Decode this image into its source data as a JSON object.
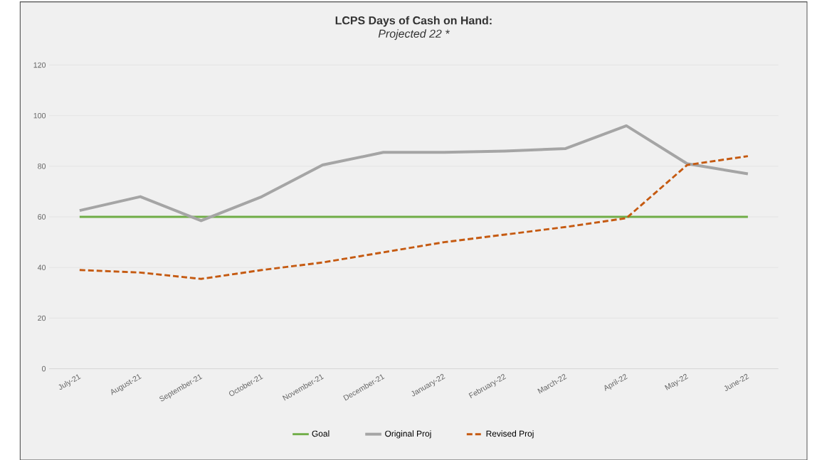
{
  "chart_data": {
    "type": "line",
    "title": "LCPS Days of Cash on Hand:",
    "subtitle": "Projected 22 *",
    "categories": [
      "July-21",
      "August-21",
      "September-21",
      "October-21",
      "November-21",
      "December-21",
      "January-22",
      "February-22",
      "March-22",
      "April-22",
      "May-22",
      "June-22"
    ],
    "series": [
      {
        "name": "Goal",
        "color": "#70ad47",
        "line_style": "solid",
        "values": [
          60,
          60,
          60,
          60,
          60,
          60,
          60,
          60,
          60,
          60,
          60,
          60
        ]
      },
      {
        "name": "Original Proj",
        "color": "#a5a5a5",
        "line_style": "solid",
        "values": [
          62.5,
          68,
          58.5,
          68,
          80.5,
          85.5,
          85.5,
          86,
          87,
          96,
          81,
          77
        ]
      },
      {
        "name": "Revised Proj",
        "color": "#c55a11",
        "line_style": "dashed",
        "values": [
          39,
          38,
          35.5,
          39,
          42,
          46,
          50,
          53,
          56,
          59.5,
          80.5,
          84
        ]
      }
    ],
    "ylim": [
      0,
      120
    ],
    "yticks": [
      0,
      20,
      40,
      60,
      80,
      100,
      120
    ],
    "grid": "y",
    "legend": "bottom",
    "marker": "none"
  }
}
